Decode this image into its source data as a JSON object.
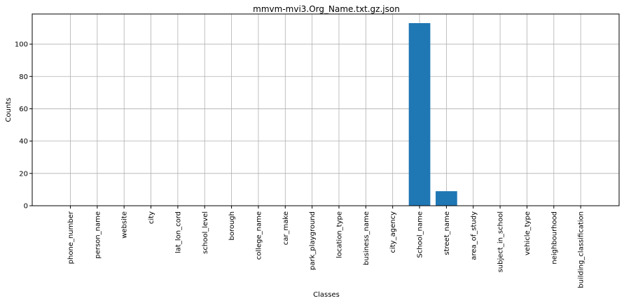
{
  "chart_data": {
    "type": "bar",
    "title": "mmvm-mvi3.Org_Name.txt.gz.json",
    "xlabel": "Classes",
    "ylabel": "Counts",
    "categories": [
      "phone_number",
      "person_name",
      "website",
      "city",
      "lat_lon_cord",
      "school_level",
      "borough",
      "college_name",
      "car_make",
      "park_playground",
      "location_type",
      "business_name",
      "city_agency",
      "School_name",
      "street_name",
      "area_of_study",
      "subject_in_school",
      "vehicle_type",
      "neighbourhood",
      "building_classification"
    ],
    "values": [
      0,
      0,
      0,
      0,
      0,
      0,
      0,
      0,
      0,
      0,
      0,
      0,
      0,
      113,
      9,
      0,
      0,
      0,
      0,
      0
    ],
    "ylim": [
      0,
      118.65
    ],
    "yticks": [
      0,
      20,
      40,
      60,
      80,
      100
    ],
    "grid": true,
    "bar_color": "#1f77b4"
  }
}
